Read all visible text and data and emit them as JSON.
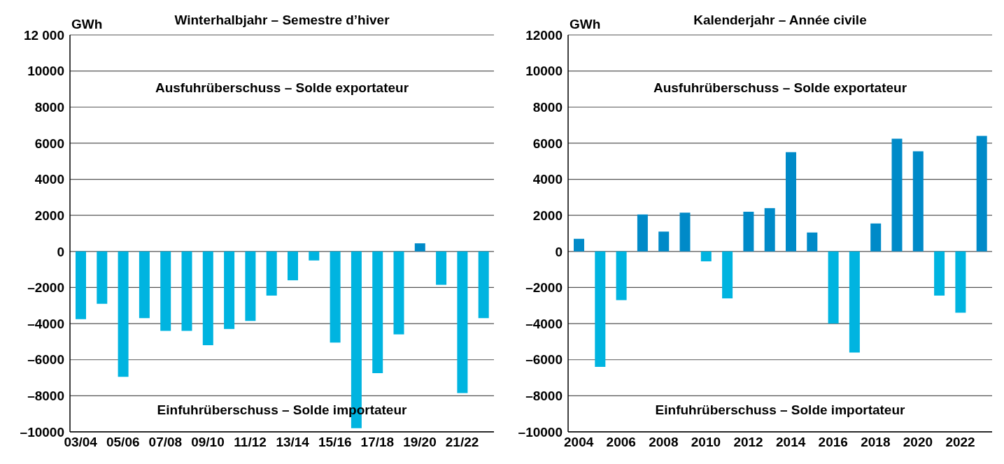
{
  "chart_data": [
    {
      "type": "bar",
      "title": "Winterhalbjahr – Semestre d’hiver",
      "ylabel": "GWh",
      "categories": [
        "03/04",
        null,
        "05/06",
        null,
        "07/08",
        null,
        "09/10",
        null,
        "11/12",
        null,
        "13/14",
        null,
        "15/16",
        null,
        "17/18",
        null,
        "19/20",
        null,
        "21/22",
        null
      ],
      "values": [
        -3750,
        -2900,
        -6950,
        -3700,
        -4400,
        -4400,
        -5200,
        -4300,
        -3850,
        -2450,
        -1600,
        -500,
        -5050,
        -9800,
        -6750,
        -4600,
        450,
        -1850,
        -7850,
        -3700
      ],
      "colors": [
        "#00b4e0",
        "#00b4e0",
        "#00b4e0",
        "#00b4e0",
        "#00b4e0",
        "#00b4e0",
        "#00b4e0",
        "#00b4e0",
        "#00b4e0",
        "#00b4e0",
        "#00b4e0",
        "#00b4e0",
        "#00b4e0",
        "#00b4e0",
        "#00b4e0",
        "#00b4e0",
        "#008ac8",
        "#00b4e0",
        "#00b4e0",
        "#00b4e0"
      ],
      "ylim": [
        -10000,
        12000
      ],
      "yticks": [
        {
          "value": -10000,
          "label": "–10000"
        },
        {
          "value": -8000,
          "label": "–8000"
        },
        {
          "value": -6000,
          "label": "–6000"
        },
        {
          "value": -4000,
          "label": "–4000"
        },
        {
          "value": -2000,
          "label": "–2000"
        },
        0,
        2000,
        4000,
        6000,
        8000,
        10000,
        {
          "value": 12000,
          "label": "12 000"
        }
      ],
      "grid": "y",
      "annotations": [
        "Ausfuhrüberschuss – Solde exportateur",
        "Einfuhrüberschuss – Solde importateur"
      ]
    },
    {
      "type": "bar",
      "title": "Kalenderjahr – Année civile",
      "ylabel": "GWh",
      "categories": [
        "2004",
        null,
        "2006",
        null,
        "2008",
        null,
        "2010",
        null,
        "2012",
        null,
        "2014",
        null,
        "2016",
        null,
        "2018",
        null,
        "2020",
        null,
        "2022",
        null
      ],
      "values": [
        700,
        -6400,
        -2700,
        2050,
        1100,
        2150,
        -550,
        -2600,
        2200,
        2400,
        5500,
        1050,
        -4000,
        -5600,
        1550,
        6250,
        5550,
        -2450,
        -3400,
        6400
      ],
      "colors": [
        "#008ac8",
        "#00b4e0",
        "#00b4e0",
        "#008ac8",
        "#008ac8",
        "#008ac8",
        "#00b4e0",
        "#00b4e0",
        "#008ac8",
        "#008ac8",
        "#008ac8",
        "#008ac8",
        "#00b4e0",
        "#00b4e0",
        "#008ac8",
        "#008ac8",
        "#008ac8",
        "#00b4e0",
        "#00b4e0",
        "#008ac8"
      ],
      "ylim": [
        -10000,
        12000
      ],
      "yticks": [
        {
          "value": -10000,
          "label": "–10000"
        },
        {
          "value": -8000,
          "label": "–8000"
        },
        {
          "value": -6000,
          "label": "–6000"
        },
        {
          "value": -4000,
          "label": "–4000"
        },
        {
          "value": -2000,
          "label": "–2000"
        },
        0,
        2000,
        4000,
        6000,
        8000,
        10000,
        12000
      ],
      "grid": "y",
      "annotations": [
        "Ausfuhrüberschuss – Solde exportateur",
        "Einfuhrüberschuss – Solde importateur"
      ]
    }
  ]
}
